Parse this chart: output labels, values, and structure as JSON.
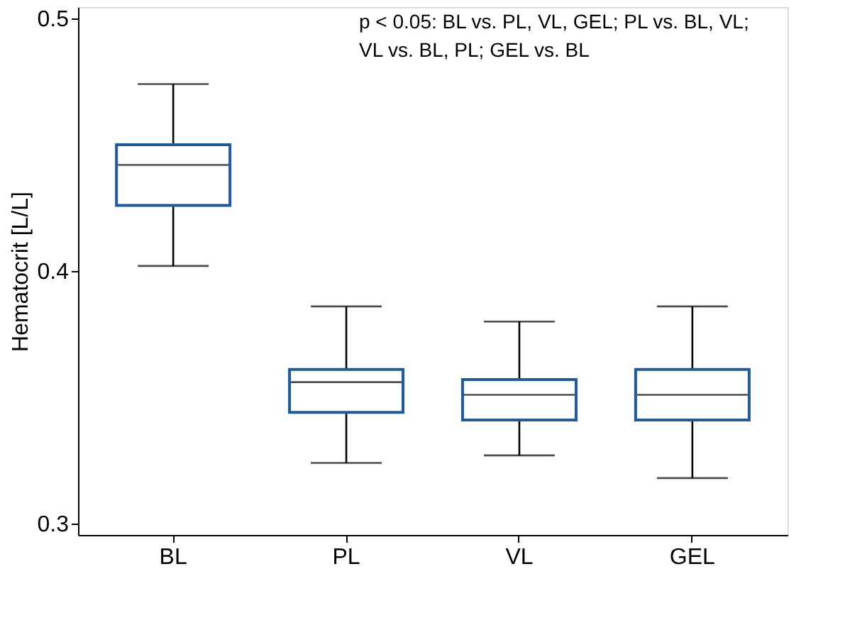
{
  "chart_data": {
    "type": "box",
    "ylabel": "Hematocrit [L/L]",
    "categories": [
      "BL",
      "PL",
      "VL",
      "GEL"
    ],
    "boxes": [
      {
        "low": 0.402,
        "q1": 0.426,
        "median": 0.442,
        "q3": 0.45,
        "high": 0.474
      },
      {
        "low": 0.324,
        "q1": 0.344,
        "median": 0.356,
        "q3": 0.361,
        "high": 0.386
      },
      {
        "low": 0.327,
        "q1": 0.341,
        "median": 0.351,
        "q3": 0.357,
        "high": 0.38
      },
      {
        "low": 0.318,
        "q1": 0.341,
        "median": 0.351,
        "q3": 0.361,
        "high": 0.386
      }
    ],
    "color": "#1d5a9e",
    "ylim": [
      0.2955,
      0.5045
    ],
    "yticks": [
      0.3,
      0.4,
      0.5
    ],
    "grid": false,
    "annotations": [
      "p < 0.05: BL vs. PL, VL, GEL; PL vs. BL, VL; VL vs. BL, PL; GEL vs. BL"
    ]
  }
}
